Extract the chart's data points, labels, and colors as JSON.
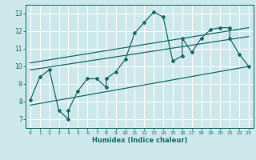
{
  "xlabel": "Humidex (Indice chaleur)",
  "ylabel": "",
  "bg_color": "#cce8ea",
  "line_color": "#1a6b6b",
  "grid_color": "#ffffff",
  "xlim": [
    -0.5,
    23.5
  ],
  "ylim": [
    6.5,
    13.5
  ],
  "xticks": [
    0,
    1,
    2,
    3,
    4,
    5,
    6,
    7,
    8,
    9,
    10,
    11,
    12,
    13,
    14,
    15,
    16,
    17,
    18,
    19,
    20,
    21,
    22,
    23
  ],
  "yticks": [
    7,
    8,
    9,
    10,
    11,
    12,
    13
  ],
  "line1_x": [
    0,
    1,
    2,
    3,
    4,
    4,
    5,
    6,
    7,
    8,
    8,
    9,
    10,
    11,
    12,
    13,
    14,
    15,
    16,
    16,
    17,
    18,
    19,
    20,
    21,
    21,
    22,
    23
  ],
  "line1_y": [
    8.1,
    9.4,
    9.8,
    7.5,
    7.0,
    7.5,
    8.6,
    9.3,
    9.3,
    8.8,
    9.3,
    9.7,
    10.4,
    11.9,
    12.5,
    13.1,
    12.8,
    10.3,
    10.6,
    11.6,
    10.8,
    11.6,
    12.1,
    12.2,
    12.2,
    11.6,
    10.7,
    10.0
  ],
  "line2_x": [
    0,
    23
  ],
  "line2_y": [
    9.8,
    11.7
  ],
  "line3_x": [
    0,
    23
  ],
  "line3_y": [
    10.2,
    12.2
  ],
  "line4_x": [
    0,
    23
  ],
  "line4_y": [
    7.8,
    10.0
  ]
}
